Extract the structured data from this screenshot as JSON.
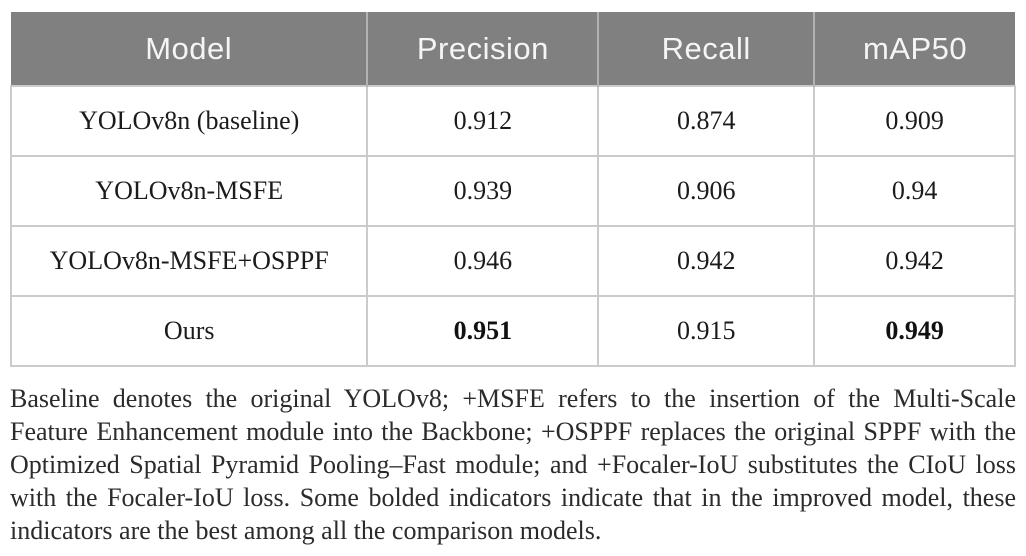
{
  "chart_data": {
    "type": "table",
    "columns": [
      "Model",
      "Precision",
      "Recall",
      "mAP50"
    ],
    "rows": [
      [
        "YOLOv8n (baseline)",
        "0.912",
        "0.874",
        "0.909"
      ],
      [
        "YOLOv8n-MSFE",
        "0.939",
        "0.906",
        "0.94"
      ],
      [
        "YOLOv8n-MSFE+OSPPF",
        "0.946",
        "0.942",
        "0.942"
      ],
      [
        "Ours",
        "0.951",
        "0.915",
        "0.949"
      ]
    ],
    "bold_cells": [
      {
        "row": 3,
        "col": 1
      },
      {
        "row": 3,
        "col": 3
      }
    ]
  },
  "footnote": "Baseline denotes the original YOLOv8; +MSFE refers to the insertion of the Multi-Scale Feature Enhancement module into the Backbone; +OSPPF replaces the original SPPF with the Optimized Spatial Pyramid Pooling–Fast module; and +Focaler-IoU substitutes the CIoU loss with the Focaler-IoU loss. Some bolded indicators indicate that in the improved model, these indicators are the best among all the comparison models.",
  "colors": {
    "header_bg": "#808080",
    "header_text": "#f5f5f5",
    "cell_border": "#cbcbcb",
    "body_text": "#1b1b1b"
  }
}
